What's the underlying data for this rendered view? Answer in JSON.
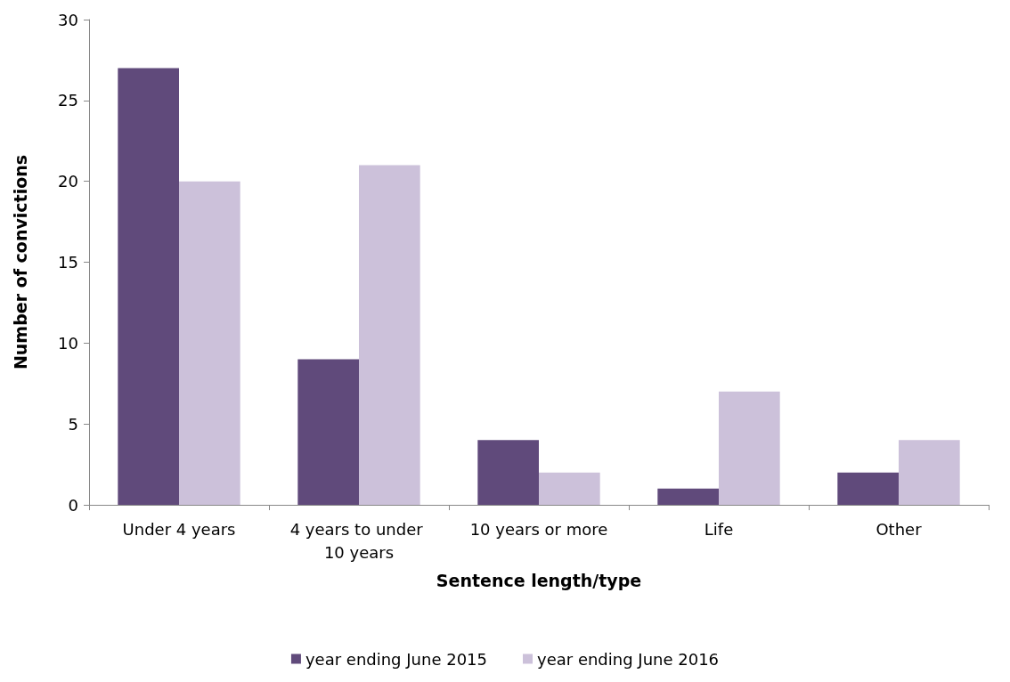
{
  "chart_data": {
    "type": "bar",
    "xlabel": "Sentence length/type",
    "ylabel": "Number of convictions",
    "categories": [
      "Under 4 years",
      "4 years to under 10 years",
      "10 years or more",
      "Life",
      "Other"
    ],
    "series": [
      {
        "name": "year ending June 2015",
        "color": "#604a7b",
        "values": [
          27,
          9,
          4,
          1,
          2
        ]
      },
      {
        "name": "year ending June 2016",
        "color": "#ccc1da",
        "values": [
          20,
          21,
          2,
          7,
          4
        ]
      }
    ],
    "ylim": [
      0,
      30
    ],
    "yticks": [
      0,
      5,
      10,
      15,
      20,
      25,
      30
    ],
    "grid": false,
    "legend": "bottom"
  }
}
